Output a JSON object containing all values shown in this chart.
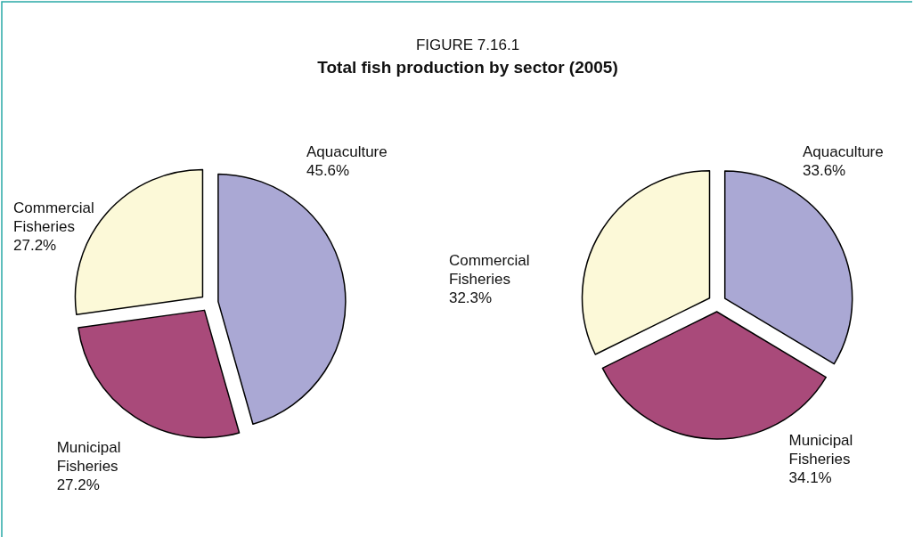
{
  "chart_data": [
    {
      "type": "pie",
      "title": "FIGURE 7.16.1",
      "subtitle": "Total fish production by sector (2005)",
      "categories": [
        "Aquaculture",
        "Municipal Fisheries",
        "Commercial Fisheries"
      ],
      "values": [
        45.6,
        27.2,
        27.2
      ],
      "colors": [
        "#aaa8d4",
        "#a94a7a",
        "#fcf9d8"
      ],
      "value_labels": [
        "45.6%",
        "27.2%",
        "27.2%"
      ]
    },
    {
      "type": "pie",
      "categories": [
        "Aquaculture",
        "Municipal Fisheries",
        "Commercial Fisheries"
      ],
      "values": [
        33.6,
        34.1,
        32.3
      ],
      "colors": [
        "#aaa8d4",
        "#a94a7a",
        "#fcf9d8"
      ],
      "value_labels": [
        "33.6%",
        "34.1%",
        "32.3%"
      ]
    }
  ]
}
